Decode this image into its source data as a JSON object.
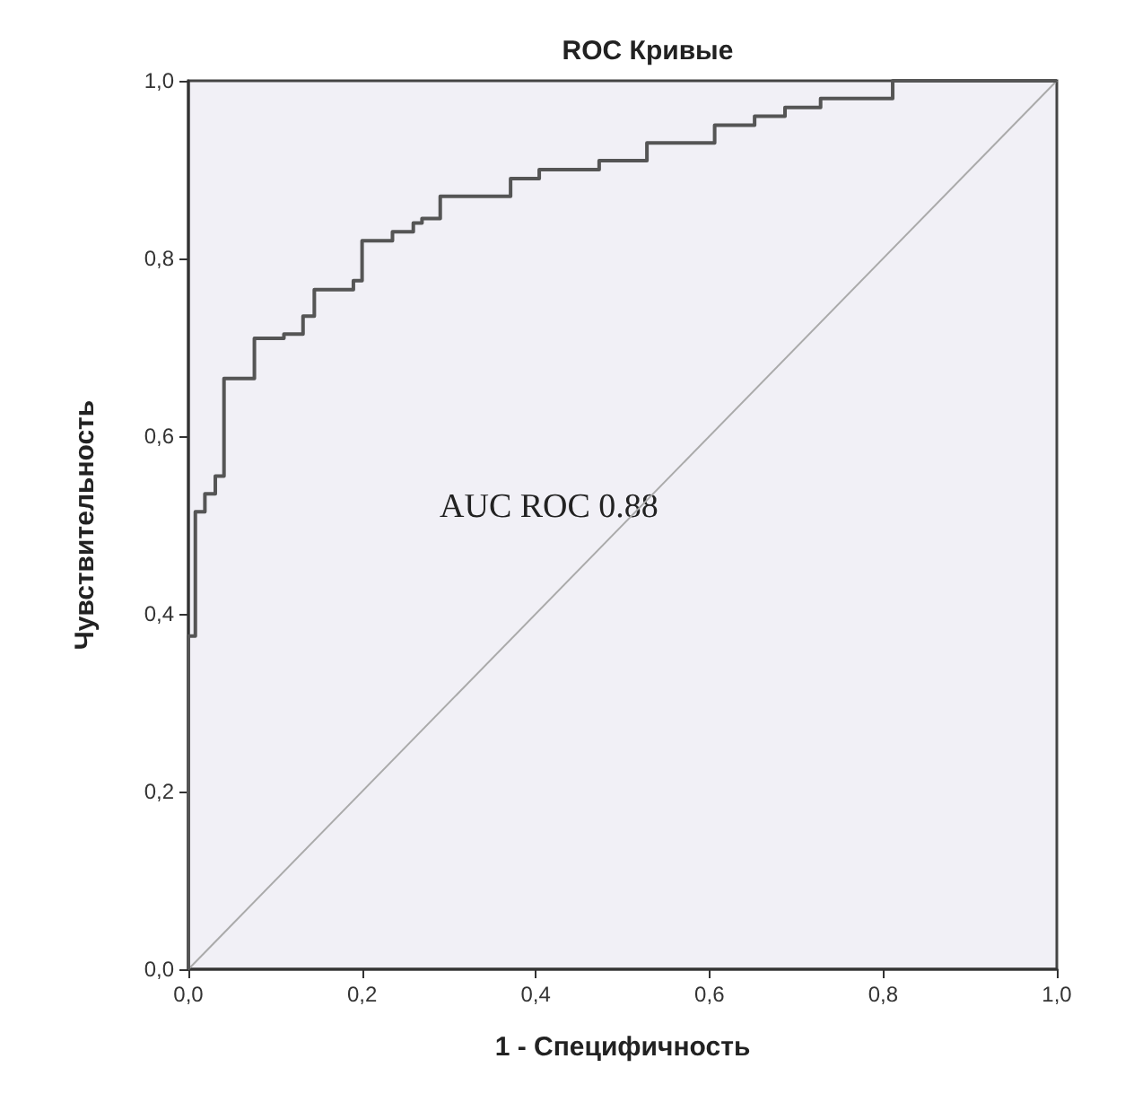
{
  "chart_data": {
    "type": "step",
    "title": "ROC Кривые",
    "xlabel": "1 - Специфичность",
    "ylabel": "Чувствительность",
    "annotations": [
      "AUC ROC 0.88"
    ],
    "xlim": [
      0,
      1
    ],
    "ylim": [
      0,
      1
    ],
    "xticks": [
      {
        "value": 0,
        "label": "0,0"
      },
      {
        "value": 0.2,
        "label": "0,2"
      },
      {
        "value": 0.4,
        "label": "0,4"
      },
      {
        "value": 0.6,
        "label": "0,6"
      },
      {
        "value": 0.8,
        "label": "0,8"
      },
      {
        "value": 1,
        "label": "1,0"
      }
    ],
    "yticks": [
      {
        "value": 0,
        "label": "0,0"
      },
      {
        "value": 0.2,
        "label": "0,2"
      },
      {
        "value": 0.4,
        "label": "0,4"
      },
      {
        "value": 0.6,
        "label": "0,6"
      },
      {
        "value": 0.8,
        "label": "0,8"
      },
      {
        "value": 1,
        "label": "1,0"
      }
    ],
    "grid": false,
    "marker": "none",
    "line_style": "solid",
    "series": [
      {
        "color": "#555555",
        "x": [
          0,
          0,
          0.008,
          0.019,
          0.031,
          0.041,
          0.076,
          0.11,
          0.132,
          0.145,
          0.19,
          0.2,
          0.235,
          0.259,
          0.269,
          0.29,
          0.371,
          0.404,
          0.473,
          0.528,
          0.606,
          0.652,
          0.687,
          0.728,
          0.787,
          0.811,
          1
        ],
        "values": [
          0,
          0.375,
          0.515,
          0.535,
          0.555,
          0.665,
          0.71,
          0.715,
          0.735,
          0.765,
          0.775,
          0.82,
          0.83,
          0.84,
          0.845,
          0.87,
          0.89,
          0.9,
          0.91,
          0.93,
          0.95,
          0.96,
          0.97,
          0.98,
          0.98,
          1,
          1
        ]
      },
      {
        "type": "line",
        "color": "#aaaaaa",
        "x": [
          0,
          1
        ],
        "values": [
          0,
          1
        ]
      }
    ]
  }
}
